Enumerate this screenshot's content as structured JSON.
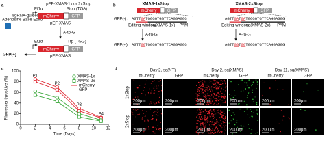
{
  "panel_a": {
    "letter": "a",
    "title": "pEF-XMAS-1x or 2xStop",
    "editor": [
      "sgRNA-guided",
      "Adenosine Base Editor"
    ],
    "promoter": "Ef1α",
    "stop": "Stop (TGA)",
    "trp": "Trp (TGG)",
    "mcherry": "mCherry",
    "gfp": "GFP",
    "plasmid": "pEF-XMAS",
    "conversion": "A-to-G",
    "result": "GFP(+)"
  },
  "panel_b": {
    "letter": "b",
    "mcherry": "mCherry",
    "gfp": "GFP",
    "before_label": "GFP(-):",
    "after_label": "GFP(+):",
    "constructs": [
      {
        "title": "XMAS-1xStop",
        "before": [
          "AGTT",
          "GA",
          "TGGGGTGGTTCAGGAGGG"
        ],
        "after": [
          "AGTT",
          "GG",
          "TGGGGTGGTTCAGGAGGG"
        ],
        "editing": "Editing window",
        "sg": "sg(XMAS-1x)",
        "pam": "PAM",
        "conversion": "A-to-G"
      },
      {
        "title": "XMAS-2xStop",
        "before": [
          "AGTT",
          "GA",
          "T",
          "GA",
          "TGGGGTGTTCAGGAGGG"
        ],
        "after": [
          "AGTT",
          "GG",
          "T",
          "GG",
          "TGGGGTGTTCAGGAGGG"
        ],
        "editing": "Editing window",
        "sg": "sg(XMAS-2x)",
        "pam": "PAM",
        "conversion": "A-to-G"
      }
    ]
  },
  "panel_c": {
    "letter": "c"
  },
  "chart_data": {
    "type": "line",
    "ylabel": "Fluorescent-positive (%)",
    "xlabel": "Time (Days)",
    "x": [
      2,
      5,
      8,
      11
    ],
    "point_labels": [
      "P1",
      "P2",
      "P3",
      "P4"
    ],
    "xlim": [
      0,
      12
    ],
    "xticks": [
      0,
      2,
      4,
      6,
      8,
      10,
      12
    ],
    "ylim": [
      0,
      100
    ],
    "yticks": [
      0,
      20,
      40,
      60,
      80,
      100
    ],
    "legend_markers": [
      {
        "name": "XMAS-1x",
        "marker": "circle"
      },
      {
        "name": "XMAS-2x",
        "marker": "square"
      }
    ],
    "legend_lines": [
      {
        "name": "mCherry",
        "color": "#e0303a"
      },
      {
        "name": "GFP",
        "color": "#3aa83a"
      }
    ],
    "series": [
      {
        "marker": "circle",
        "color": "#e0303a",
        "values": [
          85,
          70,
          30,
          13
        ]
      },
      {
        "marker": "square",
        "color": "#e0303a",
        "values": [
          80,
          65,
          25,
          12
        ]
      },
      {
        "marker": "circle",
        "color": "#3aa83a",
        "values": [
          62,
          50,
          20,
          8
        ]
      },
      {
        "marker": "square",
        "color": "#3aa83a",
        "values": [
          55,
          43,
          14,
          6
        ]
      }
    ]
  },
  "panel_d": {
    "letter": "d",
    "columns": [
      "Day 2, sg(NT)",
      "Day 2, sg(XMAS)",
      "Day 11, sg(XMAS)"
    ],
    "channels": [
      "mCherry",
      "GFP"
    ],
    "rows": [
      "1xStop",
      "2xStop"
    ],
    "scale_bar": "200μm"
  }
}
